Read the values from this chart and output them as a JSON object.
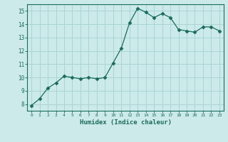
{
  "x": [
    0,
    1,
    2,
    3,
    4,
    5,
    6,
    7,
    8,
    9,
    10,
    11,
    12,
    13,
    14,
    15,
    16,
    17,
    18,
    19,
    20,
    21,
    22,
    23
  ],
  "y": [
    7.9,
    8.4,
    9.2,
    9.6,
    10.1,
    10.0,
    9.9,
    10.0,
    9.9,
    10.0,
    11.1,
    12.2,
    14.1,
    15.2,
    14.9,
    14.5,
    14.8,
    14.5,
    13.6,
    13.5,
    13.4,
    13.8,
    13.8,
    13.5
  ],
  "line_color": "#1a6b5a",
  "marker": "D",
  "marker_size": 2.5,
  "bg_color": "#cceaea",
  "grid_color": "#aad4d4",
  "xlabel": "Humidex (Indice chaleur)",
  "ylim": [
    7.5,
    15.5
  ],
  "yticks": [
    8,
    9,
    10,
    11,
    12,
    13,
    14,
    15
  ],
  "xticks": [
    0,
    1,
    2,
    3,
    4,
    5,
    6,
    7,
    8,
    9,
    10,
    11,
    12,
    13,
    14,
    15,
    16,
    17,
    18,
    19,
    20,
    21,
    22,
    23
  ]
}
